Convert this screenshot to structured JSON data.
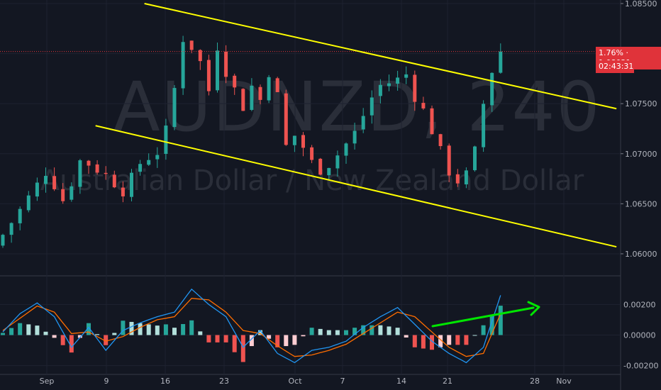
{
  "watermark": {
    "symbol": "AUDNZD, 240",
    "description": "Australian Dollar / New Zealand Dollar"
  },
  "price_badge": {
    "change": "1.76%",
    "price": "1.08021",
    "countdown": "02:43:31"
  },
  "colors": {
    "background": "#131722",
    "up_candle": "#26a69a",
    "down_candle": "#ef5350",
    "channel": "#ffff00",
    "macd_line": "#2196f3",
    "signal_line": "#ff6d00",
    "arrow": "#00e600",
    "price_line": "#e0333a"
  },
  "chart_data": [
    {
      "type": "candlestick",
      "x_ticks": [
        "Sep",
        "9",
        "16",
        "23",
        "Oct",
        "7",
        "14",
        "21",
        "28",
        "Nov"
      ],
      "y_ticks": [
        "1.06000",
        "1.06500",
        "1.07000",
        "1.07500",
        "1.08000",
        "1.08500"
      ],
      "ylim": [
        1.0595,
        1.085
      ],
      "last_price": 1.08021,
      "price_path": [
        [
          0,
          1.0608
        ],
        [
          3,
          1.0645
        ],
        [
          6,
          1.0683
        ],
        [
          8,
          1.0652
        ],
        [
          10,
          1.0695
        ],
        [
          13,
          1.0678
        ],
        [
          15,
          1.0662
        ],
        [
          17,
          1.0692
        ],
        [
          19,
          1.0702
        ],
        [
          20.2,
          1.073
        ],
        [
          21.5,
          1.0795
        ],
        [
          22,
          1.082
        ],
        [
          23,
          1.0805
        ],
        [
          24,
          1.079
        ],
        [
          25,
          1.076
        ],
        [
          25.8,
          1.081
        ],
        [
          27,
          1.078
        ],
        [
          29,
          1.0745
        ],
        [
          30,
          1.077
        ],
        [
          31,
          1.0752
        ],
        [
          32,
          1.0785
        ],
        [
          33,
          1.0755
        ],
        [
          34,
          1.0702
        ],
        [
          35,
          1.072
        ],
        [
          36,
          1.0705
        ],
        [
          37.5,
          1.0682
        ],
        [
          39,
          1.069
        ],
        [
          40,
          1.07
        ],
        [
          42,
          1.0722
        ],
        [
          44,
          1.0758
        ],
        [
          45.5,
          1.0775
        ],
        [
          46.5,
          1.0765
        ],
        [
          47.5,
          1.0788
        ],
        [
          49,
          1.0755
        ],
        [
          50,
          1.0742
        ],
        [
          52,
          1.07
        ],
        [
          53.5,
          1.067
        ],
        [
          55,
          1.068
        ],
        [
          56,
          1.0705
        ],
        [
          57,
          1.0755
        ],
        [
          57.7,
          1.0777
        ],
        [
          58.5,
          1.08
        ],
        [
          58.8,
          1.0802
        ]
      ],
      "channel": {
        "upper": {
          "from": [
            16.5,
            1.085
          ],
          "to": [
            71.5,
            1.0745
          ]
        },
        "lower": {
          "from": [
            10.8,
            1.0728
          ],
          "to": [
            71.5,
            1.0607
          ]
        }
      }
    },
    {
      "type": "macd",
      "y_ticks": [
        "-0.00200",
        "0.00000",
        "0.00200"
      ],
      "ylim": [
        -0.0022,
        0.0035
      ],
      "macd_path": [
        [
          0,
          0.0002
        ],
        [
          2,
          0.0014
        ],
        [
          4,
          0.0021
        ],
        [
          6,
          0.0012
        ],
        [
          8,
          -0.0008
        ],
        [
          10,
          0.0005
        ],
        [
          12,
          -0.001
        ],
        [
          14,
          0.0003
        ],
        [
          16,
          0.0008
        ],
        [
          18,
          0.0012
        ],
        [
          20,
          0.0015
        ],
        [
          22,
          0.003
        ],
        [
          24,
          0.002
        ],
        [
          26,
          0.0012
        ],
        [
          28,
          -0.0008
        ],
        [
          30,
          0.0003
        ],
        [
          32,
          -0.0012
        ],
        [
          34,
          -0.0018
        ],
        [
          36,
          -0.001
        ],
        [
          38,
          -0.0008
        ],
        [
          40,
          -0.0004
        ],
        [
          42,
          0.0005
        ],
        [
          44,
          0.0012
        ],
        [
          46,
          0.0018
        ],
        [
          48,
          0.0007
        ],
        [
          50,
          -0.0004
        ],
        [
          52,
          -0.0012
        ],
        [
          54,
          -0.0018
        ],
        [
          56,
          -0.0008
        ],
        [
          58,
          0.0026
        ]
      ],
      "signal_path": [
        [
          0,
          0.0003
        ],
        [
          2,
          0.0011
        ],
        [
          4,
          0.0019
        ],
        [
          6,
          0.0015
        ],
        [
          8,
          0.0001
        ],
        [
          10,
          0.0002
        ],
        [
          12,
          -0.0004
        ],
        [
          14,
          -0.0001
        ],
        [
          16,
          0.0005
        ],
        [
          18,
          0.001
        ],
        [
          20,
          0.0012
        ],
        [
          22,
          0.0024
        ],
        [
          24,
          0.0023
        ],
        [
          26,
          0.0015
        ],
        [
          28,
          0.0003
        ],
        [
          30,
          0.0001
        ],
        [
          32,
          -0.0007
        ],
        [
          34,
          -0.0014
        ],
        [
          36,
          -0.0013
        ],
        [
          38,
          -0.001
        ],
        [
          40,
          -0.0006
        ],
        [
          42,
          0.0001
        ],
        [
          44,
          0.0008
        ],
        [
          46,
          0.0015
        ],
        [
          48,
          0.0012
        ],
        [
          50,
          0.0002
        ],
        [
          52,
          -0.0008
        ],
        [
          54,
          -0.0014
        ],
        [
          56,
          -0.0012
        ],
        [
          58,
          0.0014
        ]
      ]
    }
  ]
}
